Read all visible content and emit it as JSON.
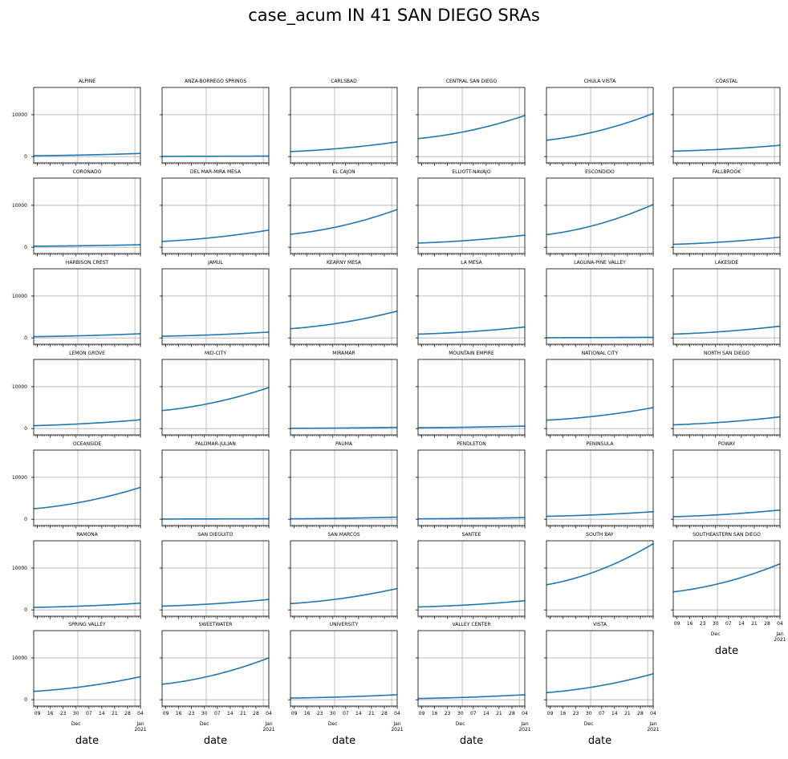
{
  "chart_data": {
    "type": "line",
    "title": "case_acum IN 41 SAN DIEGO SRAs",
    "xlabel": "date",
    "ylabel": "",
    "x_start": "2020-11-07",
    "x_end": "2021-01-04",
    "ylim": [
      -1500,
      16500
    ],
    "yticks": [
      0,
      10000
    ],
    "xticks_major": [
      "09",
      "16",
      "23",
      "30",
      "07",
      "14",
      "21",
      "28",
      "04"
    ],
    "month_labels": [
      {
        "day": "30",
        "label": "Dec"
      },
      {
        "day": "04",
        "label": "Jan\n2021"
      }
    ],
    "grid": true,
    "series_color": "#1f77b4",
    "panels": [
      {
        "name": "ALPINE",
        "start": 200,
        "end": 750
      },
      {
        "name": "ANZA-BORREGO SPRINGS",
        "start": 50,
        "end": 120
      },
      {
        "name": "CARLSBAD",
        "start": 1200,
        "end": 3500
      },
      {
        "name": "CENTRAL SAN DIEGO",
        "start": 4300,
        "end": 9800
      },
      {
        "name": "CHULA VISTA",
        "start": 3900,
        "end": 10300
      },
      {
        "name": "COASTAL",
        "start": 1300,
        "end": 2700
      },
      {
        "name": "CORONADO",
        "start": 250,
        "end": 600
      },
      {
        "name": "DEL MAR-MIRA MESA",
        "start": 1400,
        "end": 4100
      },
      {
        "name": "EL CAJON",
        "start": 3100,
        "end": 9000
      },
      {
        "name": "ELLIOTT-NAVAJO",
        "start": 1000,
        "end": 2900
      },
      {
        "name": "ESCONDIDO",
        "start": 3000,
        "end": 10200
      },
      {
        "name": "FALLBROOK",
        "start": 700,
        "end": 2400
      },
      {
        "name": "HARBISON CREST",
        "start": 300,
        "end": 1000
      },
      {
        "name": "JAMUL",
        "start": 400,
        "end": 1400
      },
      {
        "name": "KEARNY MESA",
        "start": 2200,
        "end": 6400
      },
      {
        "name": "LA MESA",
        "start": 900,
        "end": 2600
      },
      {
        "name": "LAGUNA-PINE VALLEY",
        "start": 50,
        "end": 150
      },
      {
        "name": "LAKESIDE",
        "start": 900,
        "end": 2800
      },
      {
        "name": "LEMON GROVE",
        "start": 700,
        "end": 2100
      },
      {
        "name": "MID-CITY",
        "start": 4300,
        "end": 9800
      },
      {
        "name": "MIRAMAR",
        "start": 50,
        "end": 300
      },
      {
        "name": "MOUNTAIN EMPIRE",
        "start": 200,
        "end": 600
      },
      {
        "name": "NATIONAL CITY",
        "start": 2000,
        "end": 5000
      },
      {
        "name": "NORTH SAN DIEGO",
        "start": 900,
        "end": 2800
      },
      {
        "name": "OCEANSIDE",
        "start": 2500,
        "end": 7600
      },
      {
        "name": "PALOMAR-JULIAN",
        "start": 50,
        "end": 120
      },
      {
        "name": "PAUMA",
        "start": 100,
        "end": 500
      },
      {
        "name": "PENDLETON",
        "start": 100,
        "end": 400
      },
      {
        "name": "PENINSULA",
        "start": 700,
        "end": 1800
      },
      {
        "name": "POWAY",
        "start": 600,
        "end": 2200
      },
      {
        "name": "RAMONA",
        "start": 600,
        "end": 1600
      },
      {
        "name": "SAN DIEGUITO",
        "start": 900,
        "end": 2500
      },
      {
        "name": "SAN MARCOS",
        "start": 1500,
        "end": 5100
      },
      {
        "name": "SANTEE",
        "start": 700,
        "end": 2200
      },
      {
        "name": "SOUTH BAY",
        "start": 6000,
        "end": 15800
      },
      {
        "name": "SOUTHEASTERN SAN DIEGO",
        "start": 4300,
        "end": 11000
      },
      {
        "name": "SPRING VALLEY",
        "start": 2000,
        "end": 5500
      },
      {
        "name": "SWEETWATER",
        "start": 3700,
        "end": 10000
      },
      {
        "name": "UNIVERSITY",
        "start": 400,
        "end": 1200
      },
      {
        "name": "VALLEY CENTER",
        "start": 300,
        "end": 1200
      },
      {
        "name": "VISTA",
        "start": 1700,
        "end": 6200
      }
    ]
  }
}
